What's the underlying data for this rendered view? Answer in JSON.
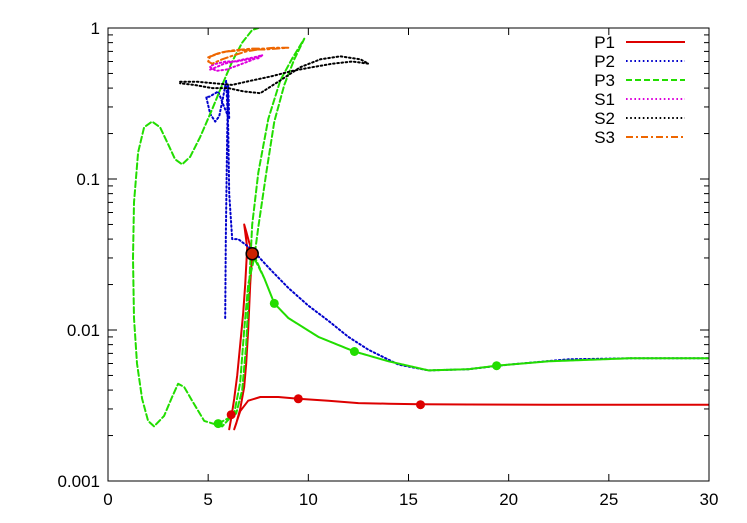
{
  "chart_data": {
    "type": "line",
    "title": "",
    "xlabel": "",
    "ylabel": "",
    "xlim": [
      0,
      30
    ],
    "ylim": [
      0.001,
      1
    ],
    "y_scale": "log",
    "grid": false,
    "legend_position": "top-right",
    "x_ticks": [
      "0",
      "5",
      "10",
      "15",
      "20",
      "25",
      "30"
    ],
    "y_ticks": [
      "0.001",
      "0.01",
      "0.1",
      "1"
    ],
    "series": [
      {
        "name": "P1",
        "color": "#dd0000",
        "dash": "solid",
        "points": [
          [
            6.05,
            0.0022
          ],
          [
            6.15,
            0.0026
          ],
          [
            6.3,
            0.0035
          ],
          [
            6.45,
            0.005
          ],
          [
            6.6,
            0.008
          ],
          [
            6.75,
            0.013
          ],
          [
            6.85,
            0.02
          ],
          [
            6.95,
            0.035
          ],
          [
            6.8,
            0.05
          ],
          [
            6.9,
            0.045
          ],
          [
            7.05,
            0.038
          ],
          [
            7.2,
            0.033
          ],
          [
            7.1,
            0.02
          ],
          [
            7.0,
            0.01
          ],
          [
            6.9,
            0.006
          ],
          [
            6.8,
            0.0042
          ],
          [
            6.6,
            0.003
          ],
          [
            6.4,
            0.0024
          ],
          [
            6.3,
            0.0022
          ],
          [
            6.6,
            0.0029
          ],
          [
            7.0,
            0.0034
          ],
          [
            7.6,
            0.0036
          ],
          [
            8.5,
            0.0036
          ],
          [
            9.5,
            0.0035
          ],
          [
            11,
            0.0034
          ],
          [
            12.5,
            0.00328
          ],
          [
            14,
            0.00325
          ],
          [
            15.6,
            0.00322
          ],
          [
            18,
            0.00321
          ],
          [
            22,
            0.0032
          ],
          [
            26,
            0.0032
          ],
          [
            30,
            0.0032
          ]
        ],
        "markers": [
          [
            6.15,
            0.00275
          ],
          [
            9.5,
            0.0035
          ],
          [
            15.6,
            0.0032
          ]
        ]
      },
      {
        "name": "P2",
        "color": "#0000cc",
        "dash": "dotted",
        "points": [
          [
            5.85,
            0.012
          ],
          [
            5.88,
            0.04
          ],
          [
            5.95,
            0.2
          ],
          [
            6.0,
            0.42
          ],
          [
            6.05,
            0.25
          ],
          [
            5.8,
            0.3
          ],
          [
            5.5,
            0.38
          ],
          [
            5.05,
            0.35
          ],
          [
            4.9,
            0.35
          ],
          [
            5.1,
            0.27
          ],
          [
            5.35,
            0.24
          ],
          [
            5.55,
            0.26
          ],
          [
            5.75,
            0.35
          ],
          [
            5.9,
            0.45
          ],
          [
            6.0,
            0.22
          ],
          [
            6.05,
            0.08
          ],
          [
            6.2,
            0.04
          ],
          [
            6.5,
            0.04
          ],
          [
            7.2,
            0.034
          ],
          [
            8.0,
            0.026
          ],
          [
            9.0,
            0.019
          ],
          [
            10.0,
            0.0145
          ],
          [
            11.0,
            0.0115
          ],
          [
            12.0,
            0.009
          ],
          [
            13.0,
            0.0074
          ],
          [
            14.5,
            0.0059
          ],
          [
            16.0,
            0.0054
          ],
          [
            18.0,
            0.0055
          ],
          [
            20.0,
            0.0059
          ],
          [
            23.0,
            0.0064
          ],
          [
            26.0,
            0.0065
          ],
          [
            30.0,
            0.0065
          ]
        ]
      },
      {
        "name": "P3",
        "color": "#22dd00",
        "dash": "dashed",
        "points": [
          [
            5.5,
            0.0024
          ],
          [
            6.0,
            0.0026
          ],
          [
            6.4,
            0.0028
          ],
          [
            6.7,
            0.004
          ],
          [
            6.9,
            0.008
          ],
          [
            7.05,
            0.02
          ],
          [
            7.2,
            0.05
          ],
          [
            7.5,
            0.11
          ],
          [
            8.0,
            0.25
          ],
          [
            8.6,
            0.45
          ],
          [
            9.2,
            0.63
          ],
          [
            9.8,
            0.85
          ],
          [
            9.3,
            0.62
          ],
          [
            8.8,
            0.42
          ],
          [
            8.3,
            0.24
          ],
          [
            7.9,
            0.11
          ],
          [
            7.5,
            0.048
          ],
          [
            7.3,
            0.03
          ],
          [
            7.35,
            0.03
          ],
          [
            7.8,
            0.022
          ],
          [
            8.3,
            0.015
          ],
          [
            9.0,
            0.012
          ],
          [
            10.5,
            0.009
          ],
          [
            12.3,
            0.0072
          ],
          [
            14.0,
            0.0062
          ],
          [
            16.0,
            0.0054
          ],
          [
            18.0,
            0.0055
          ],
          [
            19.4,
            0.0058
          ],
          [
            22.0,
            0.0062
          ],
          [
            26.0,
            0.0065
          ],
          [
            30.0,
            0.0065
          ],
          [
            30.0,
            0.0065
          ],
          [
            26.0,
            0.0065
          ],
          [
            22.0,
            0.0062
          ],
          [
            19.4,
            0.0058
          ],
          [
            18.0,
            0.0055
          ],
          [
            16.0,
            0.0054
          ],
          [
            14.0,
            0.0062
          ],
          [
            12.3,
            0.0072
          ],
          [
            10.5,
            0.009
          ],
          [
            9.0,
            0.012
          ],
          [
            8.3,
            0.015
          ],
          [
            7.8,
            0.022
          ],
          [
            7.3,
            0.03
          ],
          [
            7.0,
            0.02
          ],
          [
            6.8,
            0.01
          ],
          [
            6.6,
            0.0045
          ],
          [
            6.3,
            0.0028
          ],
          [
            5.7,
            0.0023
          ],
          [
            4.8,
            0.0025
          ],
          [
            4.2,
            0.0034
          ],
          [
            3.8,
            0.0042
          ],
          [
            3.5,
            0.0044
          ],
          [
            3.2,
            0.0036
          ],
          [
            2.8,
            0.0027
          ],
          [
            2.3,
            0.0023
          ],
          [
            2.0,
            0.0025
          ],
          [
            1.7,
            0.0035
          ],
          [
            1.45,
            0.006
          ],
          [
            1.3,
            0.012
          ],
          [
            1.25,
            0.03
          ],
          [
            1.3,
            0.07
          ],
          [
            1.5,
            0.15
          ],
          [
            1.8,
            0.22
          ],
          [
            2.2,
            0.24
          ],
          [
            2.6,
            0.22
          ],
          [
            3.0,
            0.17
          ],
          [
            3.35,
            0.135
          ],
          [
            3.7,
            0.125
          ],
          [
            4.1,
            0.14
          ],
          [
            4.6,
            0.19
          ],
          [
            5.2,
            0.29
          ],
          [
            5.7,
            0.42
          ],
          [
            6.2,
            0.6
          ],
          [
            6.7,
            0.8
          ],
          [
            7.2,
            0.97
          ],
          [
            7.5,
            1.0
          ]
        ],
        "markers": [
          [
            5.5,
            0.0024
          ],
          [
            8.3,
            0.015
          ],
          [
            12.3,
            0.0072
          ],
          [
            19.4,
            0.0058
          ]
        ]
      },
      {
        "name": "S1",
        "color": "#dd00dd",
        "dash": "dotted",
        "points": [
          [
            5.1,
            0.53
          ],
          [
            5.4,
            0.55
          ],
          [
            5.8,
            0.58
          ],
          [
            6.3,
            0.6
          ],
          [
            6.8,
            0.62
          ],
          [
            7.3,
            0.64
          ],
          [
            7.7,
            0.66
          ],
          [
            7.5,
            0.63
          ],
          [
            7.0,
            0.62
          ],
          [
            6.4,
            0.6
          ],
          [
            5.9,
            0.6
          ],
          [
            5.4,
            0.58
          ],
          [
            5.1,
            0.56
          ],
          [
            5.1,
            0.55
          ],
          [
            5.4,
            0.52
          ],
          [
            5.9,
            0.53
          ],
          [
            6.4,
            0.56
          ],
          [
            7.0,
            0.6
          ],
          [
            7.5,
            0.64
          ],
          [
            7.7,
            0.66
          ]
        ]
      },
      {
        "name": "S2",
        "color": "#000000",
        "dash": "dotted",
        "points": [
          [
            3.6,
            0.44
          ],
          [
            4.5,
            0.44
          ],
          [
            5.3,
            0.43
          ],
          [
            6.2,
            0.42
          ],
          [
            7.2,
            0.45
          ],
          [
            8.2,
            0.48
          ],
          [
            9.2,
            0.52
          ],
          [
            10.2,
            0.55
          ],
          [
            11.2,
            0.58
          ],
          [
            12.2,
            0.6
          ],
          [
            13.0,
            0.58
          ],
          [
            12.6,
            0.62
          ],
          [
            11.6,
            0.65
          ],
          [
            10.6,
            0.62
          ],
          [
            9.6,
            0.55
          ],
          [
            8.6,
            0.45
          ],
          [
            7.6,
            0.37
          ],
          [
            6.8,
            0.38
          ],
          [
            6.0,
            0.4
          ],
          [
            5.2,
            0.4
          ],
          [
            4.3,
            0.42
          ],
          [
            3.6,
            0.43
          ]
        ]
      },
      {
        "name": "S3",
        "color": "#ee6600",
        "dash": "dashdot",
        "points": [
          [
            5.0,
            0.64
          ],
          [
            5.3,
            0.66
          ],
          [
            5.7,
            0.69
          ],
          [
            6.2,
            0.71
          ],
          [
            6.7,
            0.72
          ],
          [
            7.2,
            0.73
          ],
          [
            7.8,
            0.73
          ],
          [
            8.3,
            0.74
          ],
          [
            8.9,
            0.74
          ],
          [
            9.0,
            0.74
          ],
          [
            8.4,
            0.73
          ],
          [
            7.8,
            0.72
          ],
          [
            7.2,
            0.72
          ],
          [
            6.6,
            0.71
          ],
          [
            6.0,
            0.7
          ],
          [
            5.5,
            0.68
          ],
          [
            5.1,
            0.65
          ],
          [
            5.0,
            0.6
          ],
          [
            5.2,
            0.58
          ],
          [
            5.7,
            0.62
          ],
          [
            6.3,
            0.66
          ],
          [
            6.9,
            0.7
          ],
          [
            7.5,
            0.72
          ]
        ]
      }
    ],
    "highlight_point": {
      "x": 7.2,
      "y": 0.032,
      "color": "#cc2200"
    }
  }
}
